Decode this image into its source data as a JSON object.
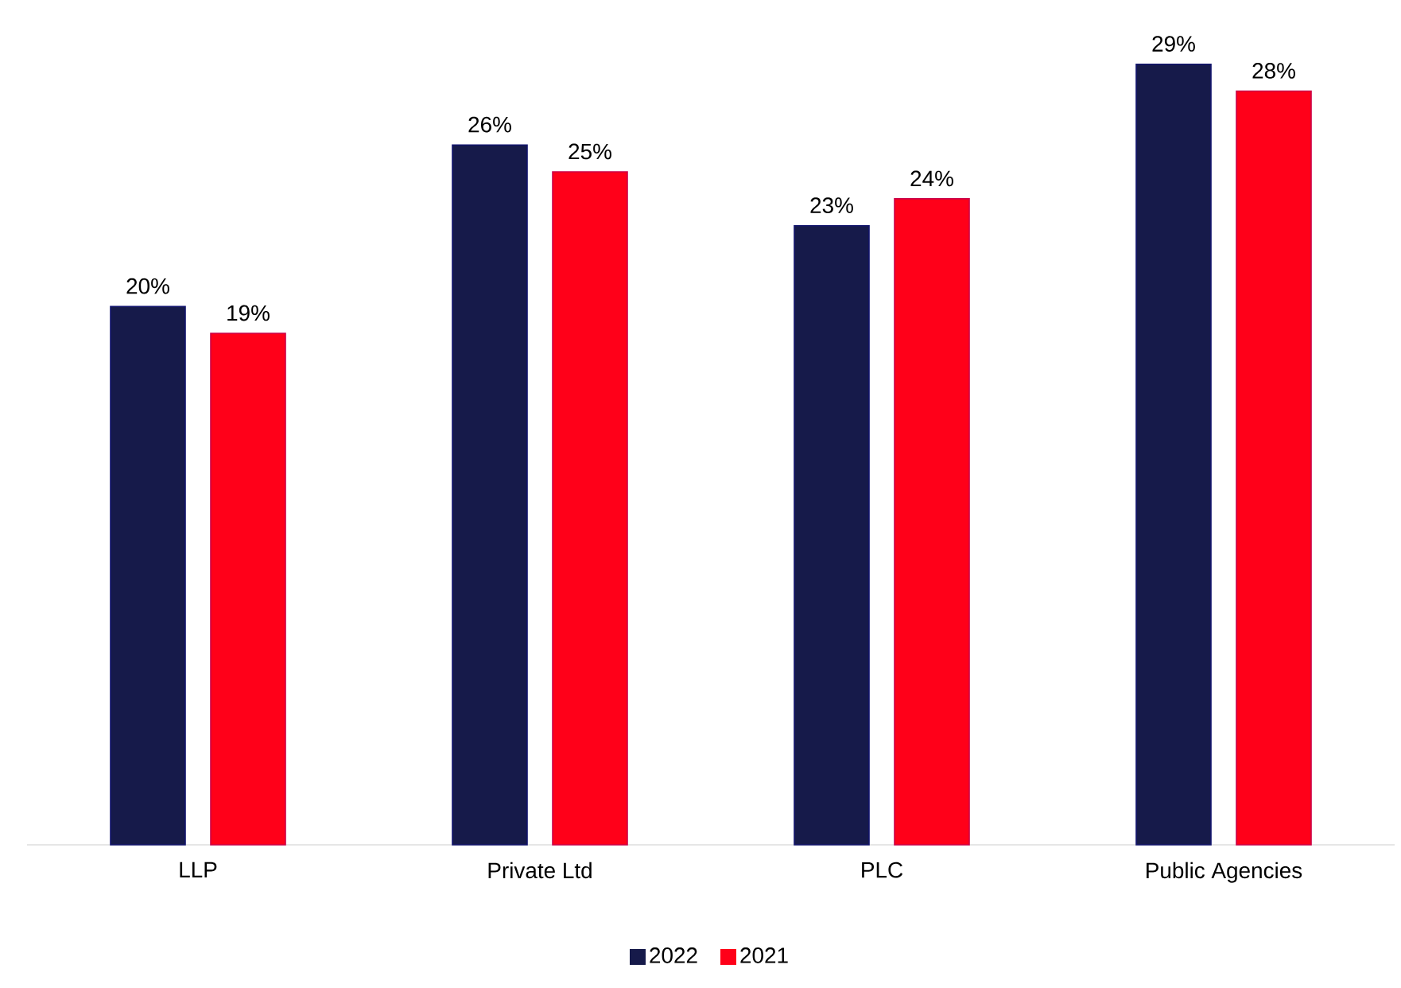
{
  "chart_data": {
    "type": "bar",
    "categories": [
      "LLP",
      "Private Ltd",
      "PLC",
      "Public Agencies"
    ],
    "series": [
      {
        "name": "2022",
        "color": "#161a4a",
        "values": [
          20,
          26,
          23,
          29
        ],
        "value_labels": [
          "20%",
          "26%",
          "23%",
          "29%"
        ]
      },
      {
        "name": "2021",
        "color": "#ff0019",
        "values": [
          19,
          25,
          24,
          28
        ],
        "value_labels": [
          "19%",
          "25%",
          "24%",
          "28%"
        ]
      }
    ],
    "legend": "bottom"
  }
}
